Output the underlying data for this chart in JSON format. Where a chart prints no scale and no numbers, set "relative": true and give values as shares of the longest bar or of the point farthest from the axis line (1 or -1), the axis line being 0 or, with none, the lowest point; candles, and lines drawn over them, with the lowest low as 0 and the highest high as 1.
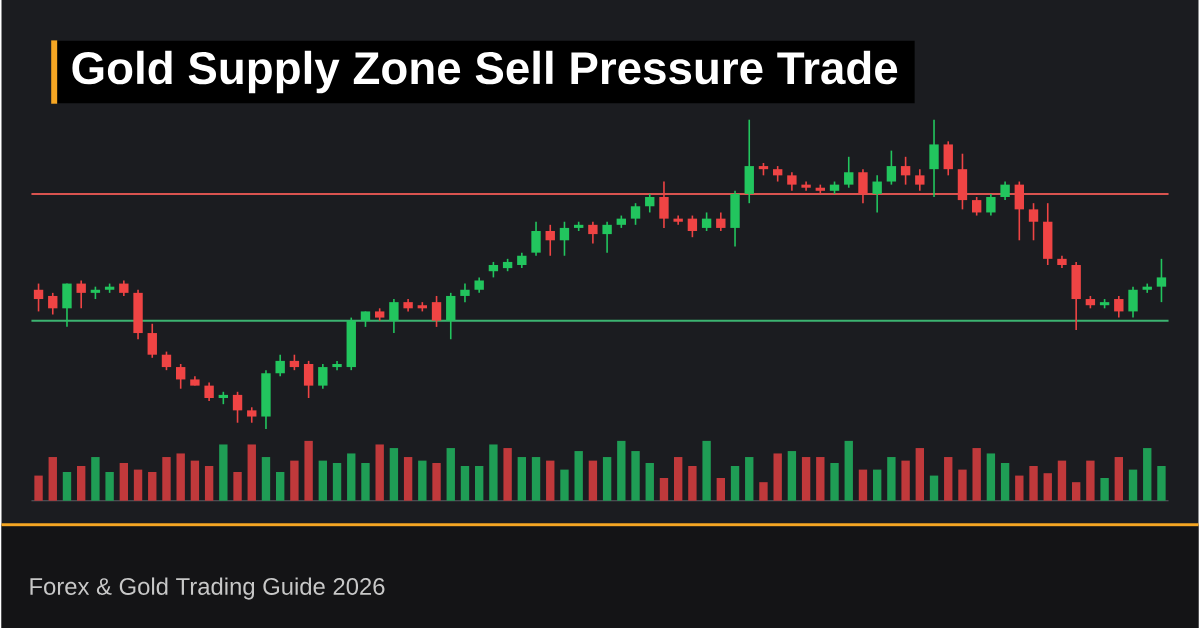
{
  "chart_data": [
    {
      "type": "candlestick",
      "title": "Gold Supply Zone Sell Pressure Trade",
      "subtitle": "Forex & Gold Trading Guide 2026",
      "relative": true,
      "categories": [
        null,
        null,
        null,
        null,
        null,
        null,
        null,
        null,
        null,
        null,
        null,
        null,
        null,
        null,
        null,
        null,
        null,
        null,
        null,
        null,
        null,
        null,
        null,
        null,
        null,
        null,
        null,
        null,
        null,
        null,
        null,
        null,
        null,
        null,
        null,
        null,
        null,
        null,
        null,
        null,
        null,
        null,
        null,
        null,
        null,
        null,
        null,
        null,
        null,
        null,
        null,
        null,
        null,
        null,
        null,
        null,
        null,
        null,
        null,
        null,
        null,
        null,
        null,
        null,
        null,
        null,
        null,
        null,
        null,
        null,
        null,
        null,
        null,
        null,
        null,
        null,
        null,
        null,
        null,
        null
      ],
      "ohlc": [
        [
          0.45,
          0.47,
          0.38,
          0.42
        ],
        [
          0.43,
          0.44,
          0.37,
          0.39
        ],
        [
          0.39,
          0.47,
          0.33,
          0.47
        ],
        [
          0.47,
          0.48,
          0.39,
          0.44
        ],
        [
          0.44,
          0.46,
          0.42,
          0.45
        ],
        [
          0.45,
          0.47,
          0.44,
          0.46
        ],
        [
          0.47,
          0.48,
          0.43,
          0.44
        ],
        [
          0.44,
          0.45,
          0.29,
          0.31
        ],
        [
          0.31,
          0.34,
          0.23,
          0.24
        ],
        [
          0.24,
          0.25,
          0.19,
          0.2
        ],
        [
          0.2,
          0.21,
          0.13,
          0.16
        ],
        [
          0.16,
          0.17,
          0.14,
          0.14
        ],
        [
          0.14,
          0.15,
          0.09,
          0.1
        ],
        [
          0.1,
          0.12,
          0.08,
          0.11
        ],
        [
          0.11,
          0.12,
          0.02,
          0.06
        ],
        [
          0.06,
          0.07,
          0.02,
          0.04
        ],
        [
          0.04,
          0.19,
          0.0,
          0.18
        ],
        [
          0.18,
          0.24,
          0.17,
          0.22
        ],
        [
          0.22,
          0.24,
          0.19,
          0.2
        ],
        [
          0.21,
          0.22,
          0.1,
          0.14
        ],
        [
          0.14,
          0.21,
          0.13,
          0.2
        ],
        [
          0.2,
          0.22,
          0.19,
          0.21
        ],
        [
          0.2,
          0.36,
          0.19,
          0.35
        ],
        [
          0.35,
          0.38,
          0.33,
          0.38
        ],
        [
          0.38,
          0.39,
          0.35,
          0.36
        ],
        [
          0.35,
          0.42,
          0.31,
          0.41
        ],
        [
          0.41,
          0.42,
          0.38,
          0.39
        ],
        [
          0.4,
          0.41,
          0.38,
          0.39
        ],
        [
          0.41,
          0.43,
          0.33,
          0.35
        ],
        [
          0.35,
          0.44,
          0.29,
          0.43
        ],
        [
          0.43,
          0.47,
          0.41,
          0.45
        ],
        [
          0.45,
          0.49,
          0.44,
          0.48
        ],
        [
          0.51,
          0.54,
          0.49,
          0.53
        ],
        [
          0.52,
          0.55,
          0.51,
          0.54
        ],
        [
          0.53,
          0.57,
          0.52,
          0.56
        ],
        [
          0.57,
          0.67,
          0.56,
          0.64
        ],
        [
          0.64,
          0.66,
          0.56,
          0.61
        ],
        [
          0.61,
          0.67,
          0.56,
          0.65
        ],
        [
          0.65,
          0.67,
          0.64,
          0.66
        ],
        [
          0.66,
          0.67,
          0.6,
          0.63
        ],
        [
          0.63,
          0.67,
          0.57,
          0.66
        ],
        [
          0.66,
          0.69,
          0.65,
          0.68
        ],
        [
          0.68,
          0.73,
          0.66,
          0.72
        ],
        [
          0.72,
          0.76,
          0.7,
          0.75
        ],
        [
          0.75,
          0.8,
          0.65,
          0.68
        ],
        [
          0.68,
          0.69,
          0.66,
          0.67
        ],
        [
          0.68,
          0.69,
          0.62,
          0.64
        ],
        [
          0.65,
          0.7,
          0.64,
          0.68
        ],
        [
          0.68,
          0.7,
          0.64,
          0.65
        ],
        [
          0.65,
          0.77,
          0.59,
          0.76
        ],
        [
          0.76,
          1.0,
          0.73,
          0.85
        ],
        [
          0.85,
          0.86,
          0.82,
          0.84
        ],
        [
          0.84,
          0.85,
          0.8,
          0.82
        ],
        [
          0.82,
          0.83,
          0.77,
          0.79
        ],
        [
          0.79,
          0.8,
          0.77,
          0.78
        ],
        [
          0.78,
          0.79,
          0.76,
          0.77
        ],
        [
          0.77,
          0.8,
          0.76,
          0.79
        ],
        [
          0.79,
          0.88,
          0.78,
          0.83
        ],
        [
          0.83,
          0.84,
          0.73,
          0.76
        ],
        [
          0.76,
          0.82,
          0.7,
          0.8
        ],
        [
          0.8,
          0.9,
          0.79,
          0.85
        ],
        [
          0.85,
          0.88,
          0.79,
          0.82
        ],
        [
          0.82,
          0.84,
          0.77,
          0.79
        ],
        [
          0.84,
          1.0,
          0.75,
          0.92
        ],
        [
          0.92,
          0.93,
          0.82,
          0.84
        ],
        [
          0.84,
          0.89,
          0.71,
          0.74
        ],
        [
          0.74,
          0.75,
          0.69,
          0.7
        ],
        [
          0.7,
          0.76,
          0.69,
          0.75
        ],
        [
          0.75,
          0.8,
          0.74,
          0.79
        ],
        [
          0.79,
          0.8,
          0.61,
          0.71
        ],
        [
          0.71,
          0.73,
          0.61,
          0.67
        ],
        [
          0.67,
          0.73,
          0.53,
          0.55
        ],
        [
          0.55,
          0.56,
          0.52,
          0.53
        ],
        [
          0.53,
          0.54,
          0.32,
          0.42
        ],
        [
          0.42,
          0.43,
          0.39,
          0.4
        ],
        [
          0.4,
          0.42,
          0.39,
          0.41
        ],
        [
          0.42,
          0.43,
          0.36,
          0.38
        ],
        [
          0.38,
          0.46,
          0.36,
          0.45
        ],
        [
          0.45,
          0.47,
          0.44,
          0.46
        ],
        [
          0.46,
          0.55,
          0.41,
          0.49
        ]
      ],
      "ref_lines": [
        {
          "axis": "y",
          "value": 0.76,
          "color": "#d9534f"
        },
        {
          "axis": "y",
          "value": 0.35,
          "color": "#3cb371"
        }
      ]
    },
    {
      "type": "bar",
      "relative": true,
      "categories": [
        null,
        null,
        null,
        null,
        null,
        null,
        null,
        null,
        null,
        null,
        null,
        null,
        null,
        null,
        null,
        null,
        null,
        null,
        null,
        null,
        null,
        null,
        null,
        null,
        null,
        null,
        null,
        null,
        null,
        null,
        null,
        null,
        null,
        null,
        null,
        null,
        null,
        null,
        null,
        null,
        null,
        null,
        null,
        null,
        null,
        null,
        null,
        null,
        null,
        null,
        null,
        null,
        null,
        null,
        null,
        null,
        null,
        null,
        null,
        null,
        null,
        null,
        null,
        null,
        null,
        null,
        null,
        null,
        null,
        null,
        null,
        null,
        null,
        null,
        null,
        null,
        null,
        null,
        null,
        null
      ],
      "values": [
        0.42,
        0.73,
        0.48,
        0.58,
        0.73,
        0.48,
        0.63,
        0.52,
        0.48,
        0.73,
        0.79,
        0.67,
        0.58,
        0.94,
        0.48,
        0.94,
        0.73,
        0.48,
        0.67,
        1,
        0.67,
        0.63,
        0.79,
        0.63,
        0.94,
        0.88,
        0.73,
        0.67,
        0.63,
        0.88,
        0.58,
        0.58,
        0.94,
        0.88,
        0.73,
        0.73,
        0.67,
        0.52,
        0.83,
        0.67,
        0.73,
        1,
        0.83,
        0.63,
        0.38,
        0.73,
        0.58,
        1,
        0.38,
        0.58,
        0.73,
        0.31,
        0.79,
        0.83,
        0.73,
        0.73,
        0.63,
        1,
        0.52,
        0.52,
        0.73,
        0.67,
        0.88,
        0.42,
        0.73,
        0.52,
        0.88,
        0.79,
        0.63,
        0.42,
        0.58,
        0.46,
        0.67,
        0.31,
        0.67,
        0.38,
        0.73,
        0.52,
        0.88,
        0.58
      ],
      "colors": [
        "#c0393b",
        "#c0393b",
        "#1f9d55",
        "#c0393b",
        "#1f9d55",
        "#1f9d55",
        "#c0393b",
        "#c0393b",
        "#c0393b",
        "#c0393b",
        "#c0393b",
        "#c0393b",
        "#c0393b",
        "#1f9d55",
        "#c0393b",
        "#c0393b",
        "#1f9d55",
        "#1f9d55",
        "#c0393b",
        "#c0393b",
        "#1f9d55",
        "#1f9d55",
        "#1f9d55",
        "#1f9d55",
        "#c0393b",
        "#1f9d55",
        "#c0393b",
        "#1f9d55",
        "#c0393b",
        "#1f9d55",
        "#1f9d55",
        "#1f9d55",
        "#1f9d55",
        "#c0393b",
        "#1f9d55",
        "#1f9d55",
        "#c0393b",
        "#1f9d55",
        "#1f9d55",
        "#c0393b",
        "#1f9d55",
        "#1f9d55",
        "#1f9d55",
        "#1f9d55",
        "#c0393b",
        "#c0393b",
        "#c0393b",
        "#1f9d55",
        "#c0393b",
        "#1f9d55",
        "#1f9d55",
        "#c0393b",
        "#c0393b",
        "#1f9d55",
        "#c0393b",
        "#c0393b",
        "#1f9d55",
        "#1f9d55",
        "#c0393b",
        "#1f9d55",
        "#1f9d55",
        "#c0393b",
        "#c0393b",
        "#1f9d55",
        "#c0393b",
        "#c0393b",
        "#c0393b",
        "#1f9d55",
        "#1f9d55",
        "#c0393b",
        "#c0393b",
        "#c0393b",
        "#c0393b",
        "#c0393b",
        "#c0393b",
        "#1f9d55",
        "#c0393b",
        "#1f9d55",
        "#1f9d55",
        "#1f9d55"
      ]
    }
  ]
}
